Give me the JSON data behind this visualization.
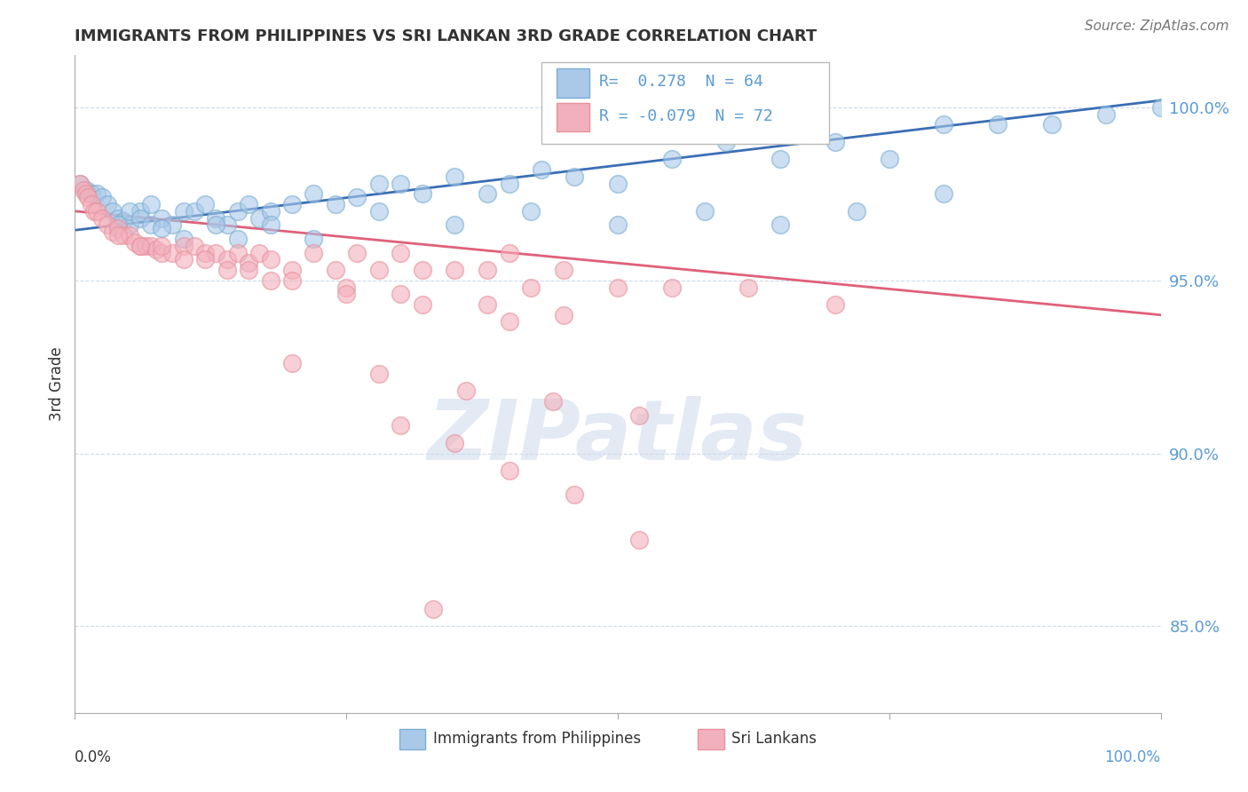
{
  "title": "IMMIGRANTS FROM PHILIPPINES VS SRI LANKAN 3RD GRADE CORRELATION CHART",
  "source": "Source: ZipAtlas.com",
  "ylabel": "3rd Grade",
  "y_tick_values": [
    0.85,
    0.9,
    0.95,
    1.0
  ],
  "xlim": [
    0.0,
    1.0
  ],
  "ylim": [
    0.825,
    1.015
  ],
  "series1_label": "Immigrants from Philippines",
  "series2_label": "Sri Lankans",
  "series1_color": "#aac9e8",
  "series2_color": "#f2b0bc",
  "series1_edge": "#7bafd4",
  "series2_edge": "#e8929e",
  "trendline1_color": "#3a6eb5",
  "trendline2_color": "#e0607a",
  "axis_label_color": "#5b9bd5",
  "ylabel_color": "#333333",
  "grid_color": "#c8d8e8",
  "watermark_color": "#cddaeb",
  "watermark_text": "ZIPatlas",
  "blue_x": [
    0.005,
    0.01,
    0.015,
    0.02,
    0.025,
    0.03,
    0.035,
    0.04,
    0.045,
    0.05,
    0.06,
    0.07,
    0.08,
    0.09,
    0.1,
    0.11,
    0.12,
    0.13,
    0.14,
    0.15,
    0.16,
    0.17,
    0.18,
    0.2,
    0.22,
    0.24,
    0.26,
    0.28,
    0.3,
    0.32,
    0.35,
    0.38,
    0.4,
    0.43,
    0.46,
    0.5,
    0.55,
    0.6,
    0.65,
    0.7,
    0.75,
    0.8,
    0.85,
    0.9,
    0.95,
    1.0,
    0.04,
    0.05,
    0.06,
    0.07,
    0.08,
    0.1,
    0.13,
    0.15,
    0.18,
    0.22,
    0.28,
    0.35,
    0.42,
    0.5,
    0.58,
    0.65,
    0.72,
    0.8
  ],
  "blue_y": [
    0.978,
    0.976,
    0.975,
    0.975,
    0.974,
    0.972,
    0.97,
    0.968,
    0.967,
    0.966,
    0.97,
    0.972,
    0.968,
    0.966,
    0.97,
    0.97,
    0.972,
    0.968,
    0.966,
    0.97,
    0.972,
    0.968,
    0.97,
    0.972,
    0.975,
    0.972,
    0.974,
    0.978,
    0.978,
    0.975,
    0.98,
    0.975,
    0.978,
    0.982,
    0.98,
    0.978,
    0.985,
    0.99,
    0.985,
    0.99,
    0.985,
    0.995,
    0.995,
    0.995,
    0.998,
    1.0,
    0.966,
    0.97,
    0.968,
    0.966,
    0.965,
    0.962,
    0.966,
    0.962,
    0.966,
    0.962,
    0.97,
    0.966,
    0.97,
    0.966,
    0.97,
    0.966,
    0.97,
    0.975
  ],
  "pink_x": [
    0.005,
    0.008,
    0.01,
    0.012,
    0.015,
    0.018,
    0.02,
    0.025,
    0.03,
    0.035,
    0.04,
    0.045,
    0.05,
    0.055,
    0.06,
    0.065,
    0.07,
    0.075,
    0.08,
    0.09,
    0.1,
    0.11,
    0.12,
    0.13,
    0.14,
    0.15,
    0.16,
    0.17,
    0.18,
    0.2,
    0.22,
    0.24,
    0.26,
    0.28,
    0.3,
    0.32,
    0.35,
    0.38,
    0.4,
    0.42,
    0.45,
    0.5,
    0.55,
    0.62,
    0.7,
    0.08,
    0.12,
    0.16,
    0.2,
    0.25,
    0.3,
    0.38,
    0.45,
    0.04,
    0.06,
    0.1,
    0.14,
    0.18,
    0.25,
    0.32,
    0.4,
    0.2,
    0.28,
    0.36,
    0.44,
    0.52,
    0.3,
    0.35,
    0.4,
    0.46,
    0.52,
    0.33
  ],
  "pink_y": [
    0.978,
    0.976,
    0.975,
    0.974,
    0.972,
    0.97,
    0.97,
    0.968,
    0.966,
    0.964,
    0.965,
    0.963,
    0.963,
    0.961,
    0.96,
    0.96,
    0.96,
    0.959,
    0.958,
    0.958,
    0.96,
    0.96,
    0.958,
    0.958,
    0.956,
    0.958,
    0.955,
    0.958,
    0.956,
    0.953,
    0.958,
    0.953,
    0.958,
    0.953,
    0.958,
    0.953,
    0.953,
    0.953,
    0.958,
    0.948,
    0.953,
    0.948,
    0.948,
    0.948,
    0.943,
    0.96,
    0.956,
    0.953,
    0.95,
    0.948,
    0.946,
    0.943,
    0.94,
    0.963,
    0.96,
    0.956,
    0.953,
    0.95,
    0.946,
    0.943,
    0.938,
    0.926,
    0.923,
    0.918,
    0.915,
    0.911,
    0.908,
    0.903,
    0.895,
    0.888,
    0.875,
    0.855
  ]
}
